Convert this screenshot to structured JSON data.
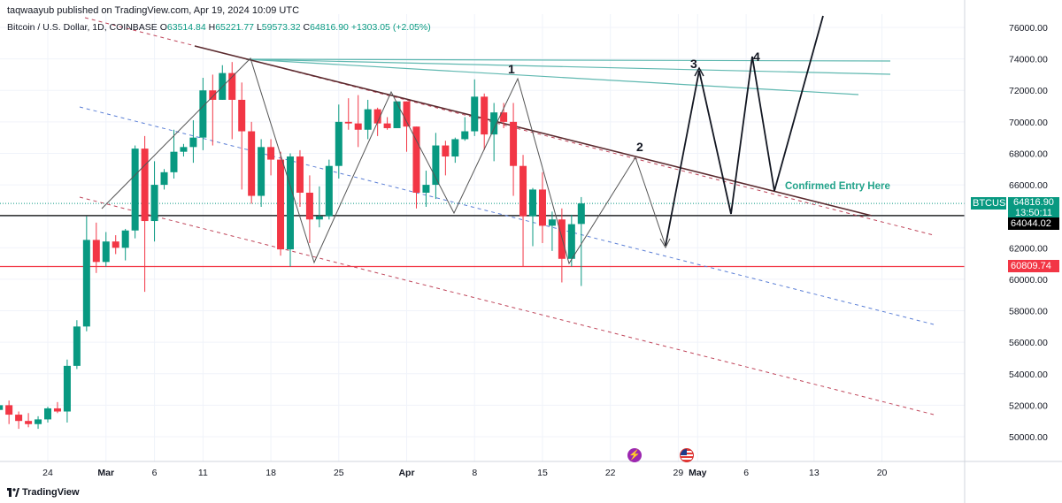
{
  "publisher_line": "taqwaayub published on TradingView.com, Apr 19, 2024 10:09 UTC",
  "symbol": {
    "name": "Bitcoin / U.S. Dollar, 1D, COINBASE",
    "open_label": "O",
    "open": "63514.84",
    "high_label": "H",
    "high": "65221.77",
    "low_label": "L",
    "low": "59573.32",
    "close_label": "C",
    "close": "64816.90",
    "change": "+1303.05 (+2.05%)"
  },
  "price_tags": {
    "ticker": "BTCUSD",
    "last_price": "64816.90",
    "countdown": "13:50:11",
    "support_black": "64044.02",
    "support_red": "60809.74"
  },
  "annotations": {
    "wave_1": "1",
    "wave_2": "2",
    "wave_3": "3",
    "wave_4": "4",
    "entry_text": "Confirmed Entry Here"
  },
  "footer": {
    "brand": "TradingView"
  },
  "colors": {
    "up": "#089981",
    "down": "#f23645",
    "black_line": "#000000",
    "red_line": "#f23645",
    "teal_lines": "#5fb8b0",
    "channel_blue": "#5b7fd6",
    "channel_red": "#c0465b",
    "entry_text": "#22a38a"
  },
  "chart_data": {
    "type": "candlestick",
    "y_axis_labels": [
      "76000.00",
      "74000.00",
      "72000.00",
      "70000.00",
      "68000.00",
      "66000.00",
      "64000.00",
      "62000.00",
      "60000.00",
      "58000.00",
      "56000.00",
      "54000.00",
      "52000.00",
      "50000.00"
    ],
    "ylim": [
      49000,
      77000
    ],
    "x_axis_labels": [
      {
        "label": "24",
        "date": "2024-02-24"
      },
      {
        "label": "Mar",
        "date": "2024-03-01"
      },
      {
        "label": "6",
        "date": "2024-03-06"
      },
      {
        "label": "11",
        "date": "2024-03-11"
      },
      {
        "label": "18",
        "date": "2024-03-18"
      },
      {
        "label": "25",
        "date": "2024-03-25"
      },
      {
        "label": "Apr",
        "date": "2024-04-01"
      },
      {
        "label": "8",
        "date": "2024-04-08"
      },
      {
        "label": "15",
        "date": "2024-04-15"
      },
      {
        "label": "22",
        "date": "2024-04-22"
      },
      {
        "label": "29",
        "date": "2024-04-29"
      },
      {
        "label": "May",
        "date": "2024-05-01"
      },
      {
        "label": "6",
        "date": "2024-05-06"
      },
      {
        "label": "13",
        "date": "2024-05-13"
      },
      {
        "label": "20",
        "date": "2024-05-20"
      }
    ],
    "candles": [
      {
        "date": "2024-02-18",
        "o": 52100,
        "h": 52500,
        "l": 51700,
        "c": 51700
      },
      {
        "date": "2024-02-19",
        "o": 51700,
        "h": 52400,
        "l": 51100,
        "c": 52000
      },
      {
        "date": "2024-02-20",
        "o": 52000,
        "h": 52300,
        "l": 50800,
        "c": 51400
      },
      {
        "date": "2024-02-21",
        "o": 51400,
        "h": 51600,
        "l": 50500,
        "c": 51000
      },
      {
        "date": "2024-02-22",
        "o": 51000,
        "h": 51500,
        "l": 50600,
        "c": 50800
      },
      {
        "date": "2024-02-23",
        "o": 50800,
        "h": 51300,
        "l": 50500,
        "c": 51100
      },
      {
        "date": "2024-02-24",
        "o": 51100,
        "h": 51900,
        "l": 50900,
        "c": 51800
      },
      {
        "date": "2024-02-25",
        "o": 51800,
        "h": 52200,
        "l": 51500,
        "c": 51600
      },
      {
        "date": "2024-02-26",
        "o": 51600,
        "h": 54900,
        "l": 50900,
        "c": 54500
      },
      {
        "date": "2024-02-27",
        "o": 54500,
        "h": 57400,
        "l": 54300,
        "c": 57000
      },
      {
        "date": "2024-02-28",
        "o": 57000,
        "h": 64000,
        "l": 56700,
        "c": 62500
      },
      {
        "date": "2024-02-29",
        "o": 62500,
        "h": 63600,
        "l": 60400,
        "c": 61100
      },
      {
        "date": "2024-03-01",
        "o": 61100,
        "h": 63000,
        "l": 60800,
        "c": 62400
      },
      {
        "date": "2024-03-02",
        "o": 62400,
        "h": 62800,
        "l": 61600,
        "c": 62000
      },
      {
        "date": "2024-03-03",
        "o": 62000,
        "h": 63200,
        "l": 61200,
        "c": 63100
      },
      {
        "date": "2024-03-04",
        "o": 63100,
        "h": 68500,
        "l": 62600,
        "c": 68300
      },
      {
        "date": "2024-03-05",
        "o": 68300,
        "h": 69100,
        "l": 59200,
        "c": 63700
      },
      {
        "date": "2024-03-06",
        "o": 63700,
        "h": 67500,
        "l": 62400,
        "c": 66000
      },
      {
        "date": "2024-03-07",
        "o": 66000,
        "h": 67000,
        "l": 65700,
        "c": 66800
      },
      {
        "date": "2024-03-08",
        "o": 66800,
        "h": 69500,
        "l": 66400,
        "c": 68100
      },
      {
        "date": "2024-03-09",
        "o": 68100,
        "h": 68600,
        "l": 67800,
        "c": 68400
      },
      {
        "date": "2024-03-10",
        "o": 68400,
        "h": 70100,
        "l": 67400,
        "c": 69000
      },
      {
        "date": "2024-03-11",
        "o": 69000,
        "h": 72800,
        "l": 68200,
        "c": 72000
      },
      {
        "date": "2024-03-12",
        "o": 72000,
        "h": 73000,
        "l": 68500,
        "c": 71400
      },
      {
        "date": "2024-03-13",
        "o": 71400,
        "h": 73600,
        "l": 71400,
        "c": 73100
      },
      {
        "date": "2024-03-14",
        "o": 73100,
        "h": 73800,
        "l": 68900,
        "c": 71400
      },
      {
        "date": "2024-03-15",
        "o": 71400,
        "h": 72500,
        "l": 65700,
        "c": 69400
      },
      {
        "date": "2024-03-16",
        "o": 69400,
        "h": 70000,
        "l": 64800,
        "c": 65300
      },
      {
        "date": "2024-03-17",
        "o": 65300,
        "h": 68900,
        "l": 64600,
        "c": 68400
      },
      {
        "date": "2024-03-18",
        "o": 68400,
        "h": 68900,
        "l": 66600,
        "c": 67600
      },
      {
        "date": "2024-03-19",
        "o": 67600,
        "h": 68100,
        "l": 61500,
        "c": 61900
      },
      {
        "date": "2024-03-20",
        "o": 61900,
        "h": 68000,
        "l": 60800,
        "c": 67800
      },
      {
        "date": "2024-03-21",
        "o": 67800,
        "h": 68200,
        "l": 64600,
        "c": 65500
      },
      {
        "date": "2024-03-22",
        "o": 65500,
        "h": 66600,
        "l": 62300,
        "c": 63800
      },
      {
        "date": "2024-03-23",
        "o": 63800,
        "h": 65900,
        "l": 63300,
        "c": 64000
      },
      {
        "date": "2024-03-24",
        "o": 64000,
        "h": 67600,
        "l": 63800,
        "c": 67200
      },
      {
        "date": "2024-03-25",
        "o": 67200,
        "h": 71100,
        "l": 66400,
        "c": 70000
      },
      {
        "date": "2024-03-26",
        "o": 70000,
        "h": 71500,
        "l": 69500,
        "c": 69900
      },
      {
        "date": "2024-03-27",
        "o": 69900,
        "h": 71700,
        "l": 68400,
        "c": 69500
      },
      {
        "date": "2024-03-28",
        "o": 69500,
        "h": 71400,
        "l": 68900,
        "c": 70800
      },
      {
        "date": "2024-03-29",
        "o": 70800,
        "h": 70900,
        "l": 69100,
        "c": 69900
      },
      {
        "date": "2024-03-30",
        "o": 69900,
        "h": 70300,
        "l": 69500,
        "c": 69600
      },
      {
        "date": "2024-03-31",
        "o": 69600,
        "h": 71300,
        "l": 69600,
        "c": 71300
      },
      {
        "date": "2024-04-01",
        "o": 71300,
        "h": 71300,
        "l": 68100,
        "c": 69700
      },
      {
        "date": "2024-04-02",
        "o": 69700,
        "h": 69700,
        "l": 64500,
        "c": 65500
      },
      {
        "date": "2024-04-03",
        "o": 65500,
        "h": 66900,
        "l": 64600,
        "c": 66000
      },
      {
        "date": "2024-04-04",
        "o": 66000,
        "h": 69300,
        "l": 65100,
        "c": 68500
      },
      {
        "date": "2024-04-05",
        "o": 68500,
        "h": 68800,
        "l": 66600,
        "c": 67800
      },
      {
        "date": "2024-04-06",
        "o": 67800,
        "h": 69000,
        "l": 67400,
        "c": 68900
      },
      {
        "date": "2024-04-07",
        "o": 68900,
        "h": 70300,
        "l": 68800,
        "c": 69400
      },
      {
        "date": "2024-04-08",
        "o": 69400,
        "h": 72700,
        "l": 69100,
        "c": 71600
      },
      {
        "date": "2024-04-09",
        "o": 71600,
        "h": 71800,
        "l": 68200,
        "c": 69200
      },
      {
        "date": "2024-04-10",
        "o": 69200,
        "h": 71200,
        "l": 67500,
        "c": 70600
      },
      {
        "date": "2024-04-11",
        "o": 70600,
        "h": 71200,
        "l": 69600,
        "c": 70000
      },
      {
        "date": "2024-04-12",
        "o": 70000,
        "h": 71200,
        "l": 65300,
        "c": 67200
      },
      {
        "date": "2024-04-13",
        "o": 67200,
        "h": 67900,
        "l": 60800,
        "c": 64000
      },
      {
        "date": "2024-04-14",
        "o": 64000,
        "h": 65800,
        "l": 62100,
        "c": 65700
      },
      {
        "date": "2024-04-15",
        "o": 65700,
        "h": 66800,
        "l": 62300,
        "c": 63400
      },
      {
        "date": "2024-04-16",
        "o": 63400,
        "h": 64300,
        "l": 61800,
        "c": 63800
      },
      {
        "date": "2024-04-17",
        "o": 63800,
        "h": 64500,
        "l": 59800,
        "c": 61300
      },
      {
        "date": "2024-04-18",
        "o": 61300,
        "h": 64100,
        "l": 60800,
        "c": 63500
      },
      {
        "date": "2024-04-19",
        "o": 63514.84,
        "h": 65221.77,
        "l": 59573.32,
        "c": 64816.9
      }
    ],
    "levels": [
      {
        "name": "support_black",
        "price": 64044.02
      },
      {
        "name": "support_red",
        "price": 60809.74
      }
    ],
    "last_price": 64816.9
  }
}
